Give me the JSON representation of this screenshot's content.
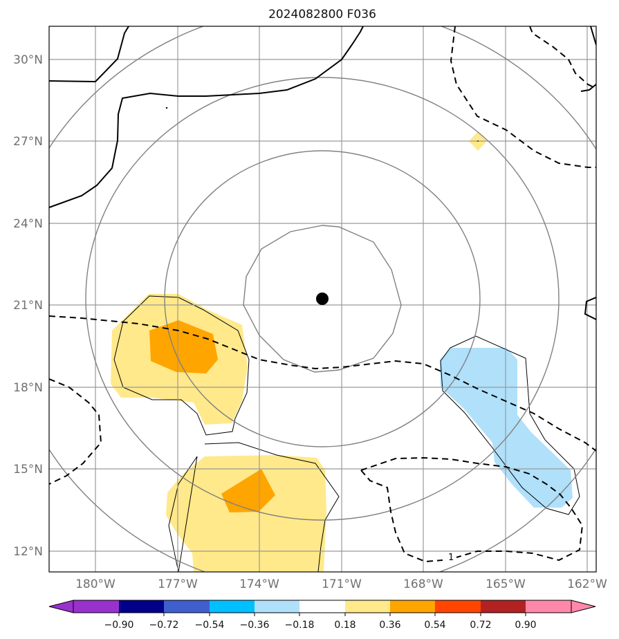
{
  "title": "2024082800 F036",
  "axes": {
    "lon_labels": [
      "180°W",
      "177°W",
      "174°W",
      "171°W",
      "168°W",
      "165°W",
      "162°W"
    ],
    "lat_labels": [
      "30°N",
      "27°N",
      "24°N",
      "21°N",
      "18°N",
      "15°N",
      "12°N"
    ]
  },
  "center_marker": {
    "lon": -171.6,
    "lat": 21.2
  },
  "contour_label": "1",
  "colorbar": {
    "ticks": [
      "−0.90",
      "−0.72",
      "−0.54",
      "−0.36",
      "−0.18",
      "0.18",
      "0.36",
      "0.54",
      "0.72",
      "0.90"
    ],
    "colors": {
      "under": "#9932cc",
      "bins": [
        "#9932cc",
        "#00008b",
        "#3f5fcf",
        "#00bfff",
        "#b0e0fa",
        "#ffffff",
        "#ffe98a",
        "#ffa500",
        "#ff4500",
        "#b22222",
        "#ff88aa"
      ],
      "over": "#ff88aa"
    }
  },
  "colors": {
    "light_yellow": "#ffe98a",
    "orange": "#ffa500",
    "light_blue": "#b0e0fa",
    "grid": "#999999",
    "range_rings": "#808080"
  }
}
